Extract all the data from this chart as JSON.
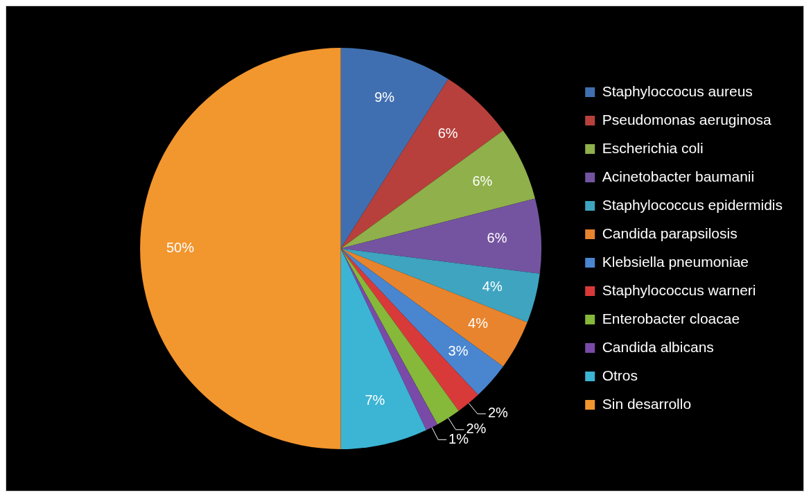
{
  "chart_data": {
    "type": "pie",
    "categories": [
      "Staphyloccocus aureus",
      "Pseudomonas aeruginosa",
      "Escherichia coli",
      "Acinetobacter baumanii",
      "Staphylococcus epidermidis",
      "Candida parapsilosis",
      "Klebsiella pneumoniae",
      "Staphylococcus warneri",
      "Enterobacter cloacae",
      "Candida albicans",
      "Otros",
      "Sin desarrollo"
    ],
    "values": [
      9,
      6,
      6,
      6,
      4,
      4,
      3,
      2,
      2,
      1,
      7,
      50
    ],
    "colors": [
      "#3f6fb0",
      "#b8403c",
      "#8fb04a",
      "#7454a0",
      "#3ea4c0",
      "#e8842e",
      "#4a86d0",
      "#d83a3a",
      "#86b83a",
      "#7a4aa8",
      "#3cb4d4",
      "#f2962e"
    ],
    "value_labels": [
      "9%",
      "6%",
      "6%",
      "6%",
      "4%",
      "4%",
      "3%",
      "2%",
      "2%",
      "1%",
      "7%",
      "50%"
    ],
    "legend": "right"
  }
}
